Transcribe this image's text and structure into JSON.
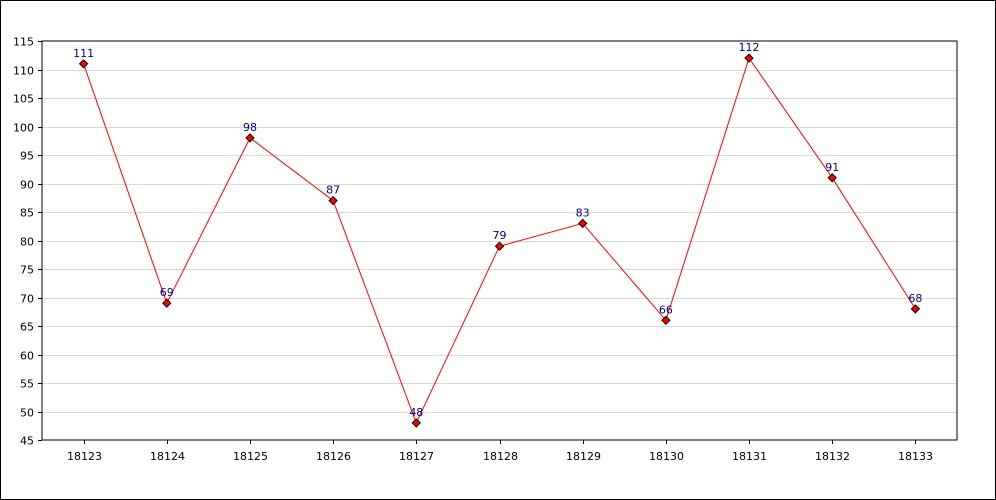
{
  "chart_data": {
    "type": "line",
    "title": "",
    "xlabel": "",
    "ylabel": "",
    "categories": [
      "18123",
      "18124",
      "18125",
      "18126",
      "18127",
      "18128",
      "18129",
      "18130",
      "18131",
      "18132",
      "18133"
    ],
    "series": [
      {
        "values": [
          111,
          69,
          98,
          87,
          48,
          79,
          83,
          66,
          112,
          91,
          68
        ]
      }
    ],
    "ylim": [
      45,
      115
    ],
    "ytick_step": 5,
    "yticks": [
      "45",
      "50",
      "55",
      "60",
      "65",
      "70",
      "75",
      "80",
      "85",
      "90",
      "95",
      "100",
      "105",
      "110",
      "115"
    ],
    "data_labels": [
      "111",
      "69",
      "98",
      "87",
      "48",
      "79",
      "83",
      "66",
      "112",
      "91",
      "68"
    ],
    "grid": "horizontal",
    "legend": "none",
    "colors": {
      "line": "#ff0000",
      "marker_fill": "#ff0000",
      "marker_stroke": "#000000",
      "data_label": "#000080",
      "grid": "#d9d9d9",
      "axis": "#000000"
    },
    "marker": "diamond"
  }
}
